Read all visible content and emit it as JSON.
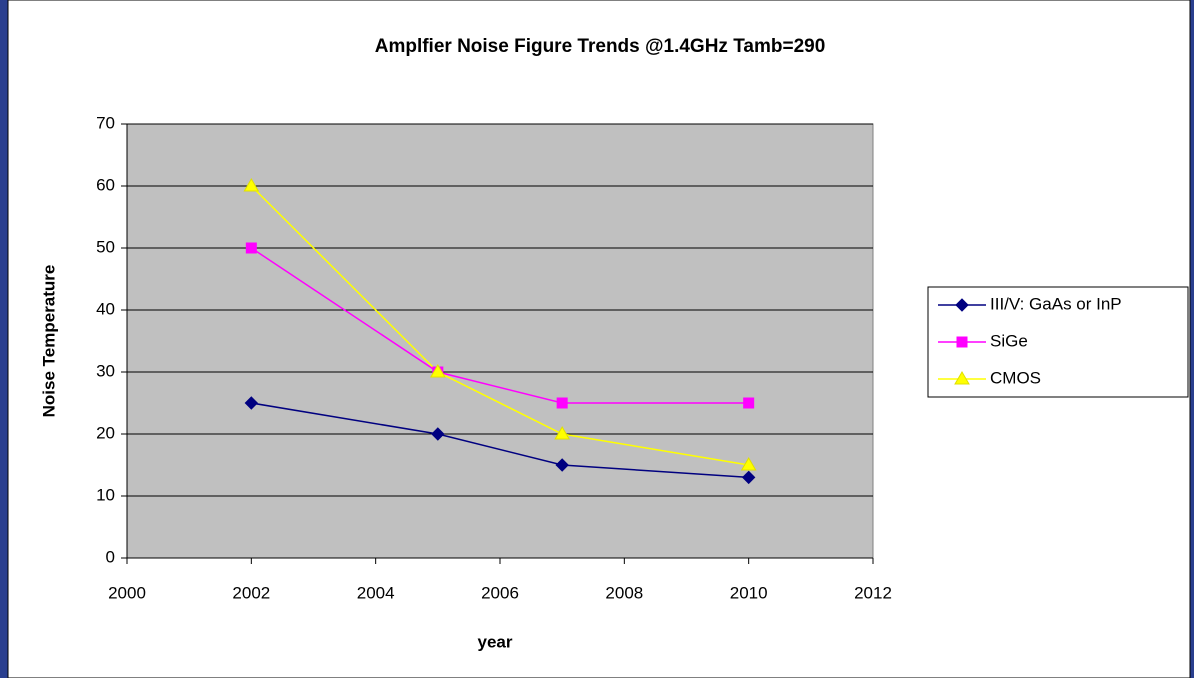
{
  "chart_data": {
    "type": "line",
    "title": "Amplfier Noise Figure Trends @1.4GHz Tamb=290",
    "x_label": "year",
    "y_label": "Noise Temperature",
    "x": [
      2002,
      2005,
      2007,
      2010
    ],
    "series": [
      {
        "name": "III/V: GaAs or InP",
        "color": "#000080",
        "marker": "diamond",
        "values": [
          25,
          20,
          15,
          13
        ]
      },
      {
        "name": "SiGe",
        "color": "#ff00ff",
        "marker": "square",
        "values": [
          50,
          30,
          25,
          25
        ]
      },
      {
        "name": "CMOS",
        "color": "#ffff00",
        "marker": "triangle",
        "values": [
          60,
          30,
          20,
          15
        ]
      }
    ],
    "xlim": [
      2000,
      2012
    ],
    "xticks": [
      2000,
      2002,
      2004,
      2006,
      2008,
      2010,
      2012
    ],
    "ylim": [
      0,
      70
    ],
    "yticks": [
      0,
      10,
      20,
      30,
      40,
      50,
      60,
      70
    ],
    "grid": true,
    "legend": "right",
    "plot_background": "#c0c0c0"
  }
}
